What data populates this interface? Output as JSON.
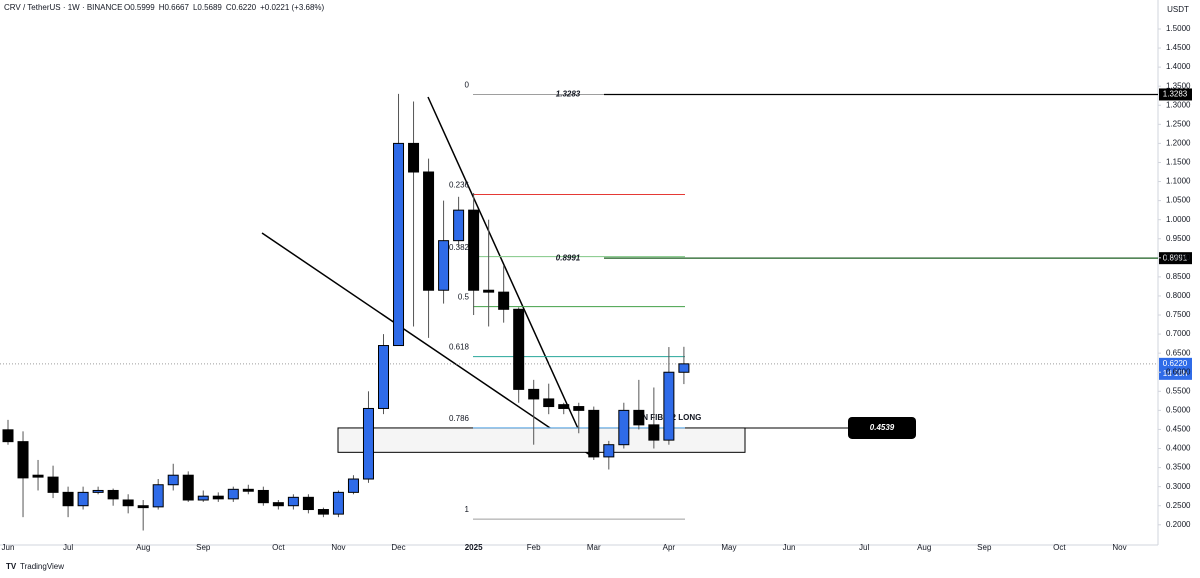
{
  "chart_data": {
    "type": "candlestick",
    "title": "CRV / TetherUS · 1W · BINANCE",
    "ohlc_legend": [
      "O0.5999",
      "H0.6667",
      "L0.5689",
      "C0.6220",
      "+0.0221 (+3.68%)"
    ],
    "y_unit": "USDT",
    "categories": [
      "Jun",
      null,
      null,
      null,
      "Jul",
      null,
      null,
      null,
      null,
      "Aug",
      null,
      null,
      null,
      "Sep",
      null,
      null,
      null,
      null,
      "Oct",
      null,
      null,
      null,
      "Nov",
      null,
      null,
      null,
      "Dec",
      null,
      null,
      null,
      null,
      "2025",
      null,
      null,
      null,
      "Feb",
      null,
      null,
      null,
      "Mar",
      null,
      null,
      null,
      null,
      "Apr",
      null,
      null,
      null,
      "May",
      null,
      null,
      null,
      "Jun",
      null,
      null,
      null,
      null,
      "Jul",
      null,
      null,
      null,
      "Aug",
      null,
      null,
      null,
      "Sep",
      null,
      null,
      null,
      null,
      "Oct",
      null,
      null,
      null,
      "Nov"
    ],
    "open": [
      0.449,
      0.418,
      0.33,
      0.325,
      0.285,
      0.25,
      0.285,
      0.29,
      0.265,
      0.25,
      0.247,
      0.305,
      0.33,
      0.265,
      0.275,
      0.268,
      0.293,
      0.29,
      0.258,
      0.25,
      0.272,
      0.24,
      0.228,
      0.285,
      0.32,
      0.505,
      0.67,
      1.2,
      1.125,
      0.815,
      0.945,
      1.025,
      0.815,
      0.81,
      0.765,
      0.555,
      0.53,
      0.515,
      0.51,
      0.5,
      0.378,
      0.41,
      0.5,
      0.462,
      0.422,
      0.5999,
      null,
      null,
      null,
      null,
      null,
      null,
      null,
      null,
      null,
      null,
      null,
      null,
      null,
      null,
      null,
      null,
      null,
      null,
      null,
      null,
      null,
      null,
      null,
      null,
      null,
      null,
      null,
      null,
      null
    ],
    "high": [
      0.475,
      0.445,
      0.37,
      0.355,
      0.3,
      0.3,
      0.3,
      0.295,
      0.28,
      0.265,
      0.32,
      0.36,
      0.34,
      0.29,
      0.285,
      0.3,
      0.305,
      0.3,
      0.265,
      0.28,
      0.28,
      0.245,
      0.29,
      0.33,
      0.55,
      0.7,
      1.33,
      1.31,
      1.16,
      1.05,
      1.06,
      1.07,
      1.0,
      0.88,
      0.77,
      0.58,
      0.57,
      0.52,
      0.52,
      0.51,
      0.42,
      0.52,
      0.58,
      0.56,
      0.666,
      0.6667,
      null,
      null,
      null,
      null,
      null,
      null,
      null,
      null,
      null,
      null,
      null,
      null,
      null,
      null,
      null,
      null,
      null,
      null,
      null,
      null,
      null,
      null,
      null,
      null,
      null,
      null,
      null,
      null,
      null
    ],
    "low": [
      0.41,
      0.22,
      0.29,
      0.27,
      0.22,
      0.24,
      0.28,
      0.25,
      0.23,
      0.185,
      0.24,
      0.29,
      0.26,
      0.26,
      0.26,
      0.26,
      0.28,
      0.25,
      0.24,
      0.24,
      0.23,
      0.22,
      0.22,
      0.28,
      0.31,
      0.49,
      0.67,
      0.72,
      0.69,
      0.78,
      0.93,
      0.75,
      0.72,
      0.73,
      0.52,
      0.41,
      0.49,
      0.49,
      0.44,
      0.37,
      0.345,
      0.4,
      0.45,
      0.4,
      0.41,
      0.5689,
      null,
      null,
      null,
      null,
      null,
      null,
      null,
      null,
      null,
      null,
      null,
      null,
      null,
      null,
      null,
      null,
      null,
      null,
      null,
      null,
      null,
      null,
      null,
      null,
      null,
      null,
      null,
      null,
      null
    ],
    "close": [
      0.418,
      0.323,
      0.325,
      0.285,
      0.25,
      0.285,
      0.29,
      0.268,
      0.25,
      0.245,
      0.305,
      0.33,
      0.265,
      0.275,
      0.268,
      0.293,
      0.288,
      0.258,
      0.25,
      0.272,
      0.24,
      0.228,
      0.285,
      0.32,
      0.505,
      0.67,
      1.2,
      1.125,
      0.815,
      0.945,
      1.025,
      0.815,
      0.81,
      0.765,
      0.555,
      0.53,
      0.51,
      0.505,
      0.5,
      0.378,
      0.41,
      0.5,
      0.462,
      0.422,
      0.6,
      0.622,
      null,
      null,
      null,
      null,
      null,
      null,
      null,
      null,
      null,
      null,
      null,
      null,
      null,
      null,
      null,
      null,
      null,
      null,
      null,
      null,
      null,
      null,
      null,
      null,
      null,
      null,
      null,
      null,
      null
    ],
    "up_color": "#2f6be8",
    "down_color": "#000000",
    "ylim": [
      0.147,
      1.576
    ],
    "yticks": [
      {
        "value": 0.2,
        "label": "0.2000"
      },
      {
        "value": 0.25,
        "label": "0.2500"
      },
      {
        "value": 0.3,
        "label": "0.3000"
      },
      {
        "value": 0.35,
        "label": "0.3500"
      },
      {
        "value": 0.4,
        "label": "0.4000"
      },
      {
        "value": 0.45,
        "label": "0.4500"
      },
      {
        "value": 0.5,
        "label": "0.5000"
      },
      {
        "value": 0.55,
        "label": "0.5500"
      },
      {
        "value": 0.6,
        "label": "0.6000"
      },
      {
        "value": 0.65,
        "label": "0.6500"
      },
      {
        "value": 0.7,
        "label": "0.7000"
      },
      {
        "value": 0.75,
        "label": "0.7500"
      },
      {
        "value": 0.8,
        "label": "0.8000"
      },
      {
        "value": 0.85,
        "label": "0.8500"
      },
      {
        "value": 0.9,
        "label": "0.9000"
      },
      {
        "value": 0.95,
        "label": "0.9500"
      },
      {
        "value": 1.0,
        "label": "1.0000"
      },
      {
        "value": 1.05,
        "label": "1.0500"
      },
      {
        "value": 1.1,
        "label": "1.1000"
      },
      {
        "value": 1.15,
        "label": "1.1500"
      },
      {
        "value": 1.2,
        "label": "1.2000"
      },
      {
        "value": 1.25,
        "label": "1.2500"
      },
      {
        "value": 1.3,
        "label": "1.3000"
      },
      {
        "value": 1.35,
        "label": "1.3500"
      },
      {
        "value": 1.4,
        "label": "1.4000"
      },
      {
        "value": 1.45,
        "label": "1.4500"
      },
      {
        "value": 1.5,
        "label": "1.5000"
      }
    ],
    "grid": false,
    "fib_levels": [
      {
        "ratio": 0,
        "price": 1.3283,
        "color": "#9e9e9e"
      },
      {
        "ratio": 0.236,
        "price": 1.066,
        "color": "#e53935"
      },
      {
        "ratio": 0.382,
        "price": 0.903,
        "color": "#81c784"
      },
      {
        "ratio": 0.5,
        "price": 0.772,
        "color": "#43a047"
      },
      {
        "ratio": 0.618,
        "price": 0.641,
        "color": "#26a69a"
      },
      {
        "ratio": 0.786,
        "price": 0.454,
        "color": "#64b5f6"
      },
      {
        "ratio": 1,
        "price": 0.215,
        "color": "#9e9e9e"
      }
    ],
    "price_levels": [
      {
        "value": 1.3283,
        "color": "#000000"
      },
      {
        "value": 0.8991,
        "color": "#1b5e20"
      },
      {
        "value": 0.4539,
        "color": "#000000"
      }
    ],
    "zone": [
      0.39,
      0.4539
    ],
    "annotation": "ON FIBO 2 LONG",
    "current_price": {
      "value": 0.622,
      "label": "0.6220"
    },
    "countdown": "1d 10h",
    "brand": "TradingView"
  }
}
